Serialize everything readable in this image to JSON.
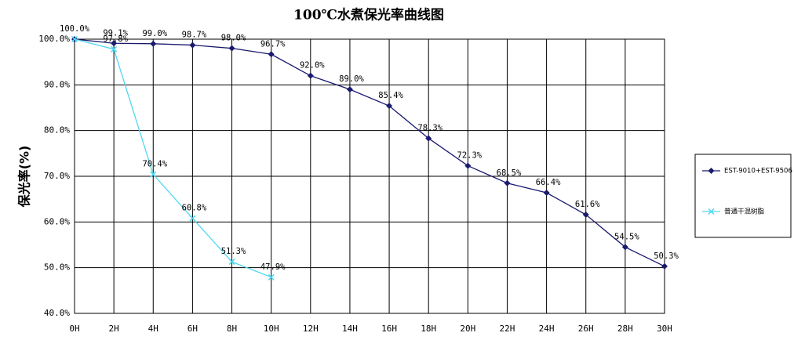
{
  "chart_data": {
    "type": "line",
    "title": "100℃水煮保光率曲线图",
    "y_label": "保光率(%)",
    "categories": [
      "0H",
      "2H",
      "4H",
      "6H",
      "8H",
      "10H",
      "12H",
      "14H",
      "16H",
      "18H",
      "20H",
      "22H",
      "24H",
      "26H",
      "28H",
      "30H"
    ],
    "series": [
      {
        "name": "EST-9010+EST-9506",
        "color": "#1a1a6e",
        "marker": "diamond",
        "values": [
          100.0,
          99.1,
          99.0,
          98.7,
          98.0,
          96.7,
          92.0,
          89.0,
          85.4,
          78.3,
          72.3,
          68.5,
          66.4,
          61.6,
          54.5,
          50.3
        ],
        "value_labels": [
          "100.0%",
          "99.1%",
          "99.0%",
          "98.7%",
          "98.0%",
          "96.7%",
          "92.0%",
          "89.0%",
          "85.4%",
          "78.3%",
          "72.3%",
          "68.5%",
          "66.4%",
          "61.6%",
          "54.5%",
          "50.3%"
        ]
      },
      {
        "name": "普通干混树脂",
        "color": "#4fd8f0",
        "marker": "x",
        "values": [
          100.0,
          97.8,
          70.4,
          60.8,
          51.3,
          47.9,
          null,
          null,
          null,
          null,
          null,
          null,
          null,
          null,
          null,
          null
        ],
        "value_labels": [
          null,
          "97.8%",
          "70.4%",
          "60.8%",
          "51.3%",
          "47.9%",
          null,
          null,
          null,
          null,
          null,
          null,
          null,
          null,
          null,
          null
        ]
      }
    ],
    "ylim": [
      40,
      100
    ],
    "yticks": [
      {
        "value": 40,
        "label": "40.0%"
      },
      {
        "value": 50,
        "label": "50.0%"
      },
      {
        "value": 60,
        "label": "60.0%"
      },
      {
        "value": 70,
        "label": "70.0%"
      },
      {
        "value": 80,
        "label": "80.0%"
      },
      {
        "value": 90,
        "label": "90.0%"
      },
      {
        "value": 100,
        "label": "100.0%"
      }
    ],
    "grid": true,
    "legend": "right"
  }
}
